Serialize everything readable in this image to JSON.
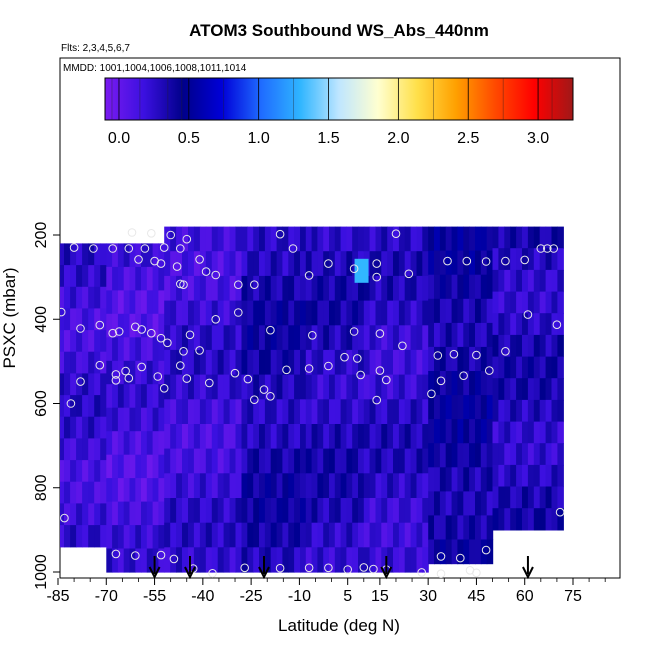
{
  "chart_data": {
    "type": "heatmap",
    "title": "ATOM3 Southbound WS_Abs_440nm",
    "subtitle_flights": "Flts: 2,3,4,5,6,7",
    "subtitle_dates": "MMDD: 1001,1004,1006,1008,1011,1014",
    "xlabel": "Latitude (deg N)",
    "ylabel": "PSXC (mbar)",
    "xlim": [
      -85,
      85
    ],
    "ylim": [
      1000,
      100
    ],
    "x_ticks": [
      "-85",
      "-70",
      "-55",
      "-40",
      "-25",
      "-10",
      "5",
      "15",
      "30",
      "45",
      "60",
      "75"
    ],
    "x_tick_values": [
      -85,
      -70,
      -55,
      -40,
      -25,
      -10,
      5,
      15,
      30,
      45,
      60,
      75
    ],
    "y_ticks": [
      "200",
      "400",
      "600",
      "800",
      "1000"
    ],
    "y_tick_values": [
      200,
      400,
      600,
      800,
      1000
    ],
    "colorbar": {
      "range": [
        -0.1,
        3.25
      ],
      "ticks": [
        "0.0",
        "0.5",
        "1.0",
        "1.5",
        "2.0",
        "2.5",
        "3.0"
      ],
      "tick_values": [
        0.0,
        0.5,
        1.0,
        1.5,
        2.0,
        2.5,
        3.0
      ],
      "colors": [
        "#7a1af0",
        "#3b10e0",
        "#00008a",
        "#0000d8",
        "#1f6bff",
        "#2fb5ff",
        "#bfe6ff",
        "#ffffd0",
        "#ffe04a",
        "#ffa000",
        "#ff4a00",
        "#ff0000",
        "#a01818"
      ]
    },
    "profile_segments": [
      {
        "lat_min": -85,
        "lat_max": -70,
        "p_top": 220,
        "p_bottom": 940,
        "value": 0.2
      },
      {
        "lat_min": -70,
        "lat_max": -52,
        "p_top": 220,
        "p_bottom": 1000,
        "value": 0.15
      },
      {
        "lat_min": -52,
        "lat_max": -28,
        "p_top": 180,
        "p_bottom": 1000,
        "value": 0.2
      },
      {
        "lat_min": -28,
        "lat_max": -8,
        "p_top": 180,
        "p_bottom": 1000,
        "value": 0.35
      },
      {
        "lat_min": -8,
        "lat_max": 10,
        "p_top": 180,
        "p_bottom": 1000,
        "value": 0.3
      },
      {
        "lat_min": 10,
        "lat_max": 30,
        "p_top": 180,
        "p_bottom": 1000,
        "value": 0.25
      },
      {
        "lat_min": 30,
        "lat_max": 50,
        "p_top": 180,
        "p_bottom": 980,
        "value": 0.4
      },
      {
        "lat_min": 50,
        "lat_max": 72,
        "p_top": 180,
        "p_bottom": 900,
        "value": 0.3
      }
    ],
    "highlights": [
      {
        "lat": 9,
        "p": 285,
        "value": 1.3
      }
    ],
    "sample_points": [
      [
        -62,
        194
      ],
      [
        -56,
        196
      ],
      [
        -50,
        200
      ],
      [
        -45,
        210
      ],
      [
        -58,
        232
      ],
      [
        -52,
        230
      ],
      [
        -47,
        232
      ],
      [
        -80,
        230
      ],
      [
        -74,
        232
      ],
      [
        -68,
        232
      ],
      [
        -63,
        232
      ],
      [
        -60,
        258
      ],
      [
        -55,
        262
      ],
      [
        -53,
        268
      ],
      [
        -48,
        275
      ],
      [
        -41,
        258
      ],
      [
        -47,
        316
      ],
      [
        -46,
        318
      ],
      [
        -39,
        287
      ],
      [
        -36,
        295
      ],
      [
        -29,
        318
      ],
      [
        -24,
        318
      ],
      [
        -16,
        198
      ],
      [
        -12,
        232
      ],
      [
        -7,
        296
      ],
      [
        -1,
        268
      ],
      [
        7,
        280
      ],
      [
        14,
        268
      ],
      [
        14,
        300
      ],
      [
        20,
        197
      ],
      [
        24,
        292
      ],
      [
        36,
        262
      ],
      [
        42,
        262
      ],
      [
        48,
        263
      ],
      [
        54,
        262
      ],
      [
        60,
        259
      ],
      [
        65,
        232
      ],
      [
        67,
        232
      ],
      [
        69,
        232
      ],
      [
        -84,
        383
      ],
      [
        -78,
        422
      ],
      [
        -72,
        414
      ],
      [
        -68,
        433
      ],
      [
        -66,
        429
      ],
      [
        -61,
        418
      ],
      [
        -59,
        424
      ],
      [
        -56,
        433
      ],
      [
        -53,
        445
      ],
      [
        -51,
        456
      ],
      [
        -46,
        476
      ],
      [
        -44,
        437
      ],
      [
        -41,
        474
      ],
      [
        -36,
        400
      ],
      [
        -29,
        384
      ],
      [
        -19,
        426
      ],
      [
        -6,
        438
      ],
      [
        7,
        429
      ],
      [
        15,
        434
      ],
      [
        22,
        463
      ],
      [
        33,
        486
      ],
      [
        38,
        483
      ],
      [
        45,
        485
      ],
      [
        54,
        476
      ],
      [
        61,
        389
      ],
      [
        70,
        413
      ],
      [
        -72,
        509
      ],
      [
        -67,
        531
      ],
      [
        -67,
        545
      ],
      [
        -64,
        523
      ],
      [
        -63,
        540
      ],
      [
        -59,
        513
      ],
      [
        -54,
        536
      ],
      [
        -52,
        564
      ],
      [
        -47,
        510
      ],
      [
        -45,
        541
      ],
      [
        -38,
        551
      ],
      [
        -30,
        528
      ],
      [
        -26,
        542
      ],
      [
        -21,
        567
      ],
      [
        -14,
        520
      ],
      [
        -7,
        517
      ],
      [
        -1,
        511
      ],
      [
        4,
        490
      ],
      [
        8,
        493
      ],
      [
        9,
        532
      ],
      [
        15,
        522
      ],
      [
        17,
        544
      ],
      [
        34,
        546
      ],
      [
        41,
        534
      ],
      [
        49,
        522
      ],
      [
        -24,
        591
      ],
      [
        -19,
        583
      ],
      [
        14,
        592
      ],
      [
        31,
        577
      ],
      [
        -78,
        548
      ],
      [
        -81,
        600
      ],
      [
        -83,
        872
      ],
      [
        -67,
        957
      ],
      [
        -61,
        961
      ],
      [
        -53,
        960
      ],
      [
        -49,
        969
      ],
      [
        -43,
        992
      ],
      [
        -37,
        1003
      ],
      [
        -27,
        990
      ],
      [
        -16,
        991
      ],
      [
        -7,
        990
      ],
      [
        -1,
        990
      ],
      [
        5,
        994
      ],
      [
        10,
        989
      ],
      [
        13,
        993
      ],
      [
        17,
        994
      ],
      [
        28,
        1001
      ],
      [
        34,
        1004
      ],
      [
        43,
        996
      ],
      [
        45,
        1002
      ],
      [
        34,
        963
      ],
      [
        40,
        967
      ],
      [
        48,
        948
      ],
      [
        71,
        858
      ]
    ],
    "arrows_lat": [
      -55,
      -44,
      -21,
      17,
      61
    ]
  }
}
